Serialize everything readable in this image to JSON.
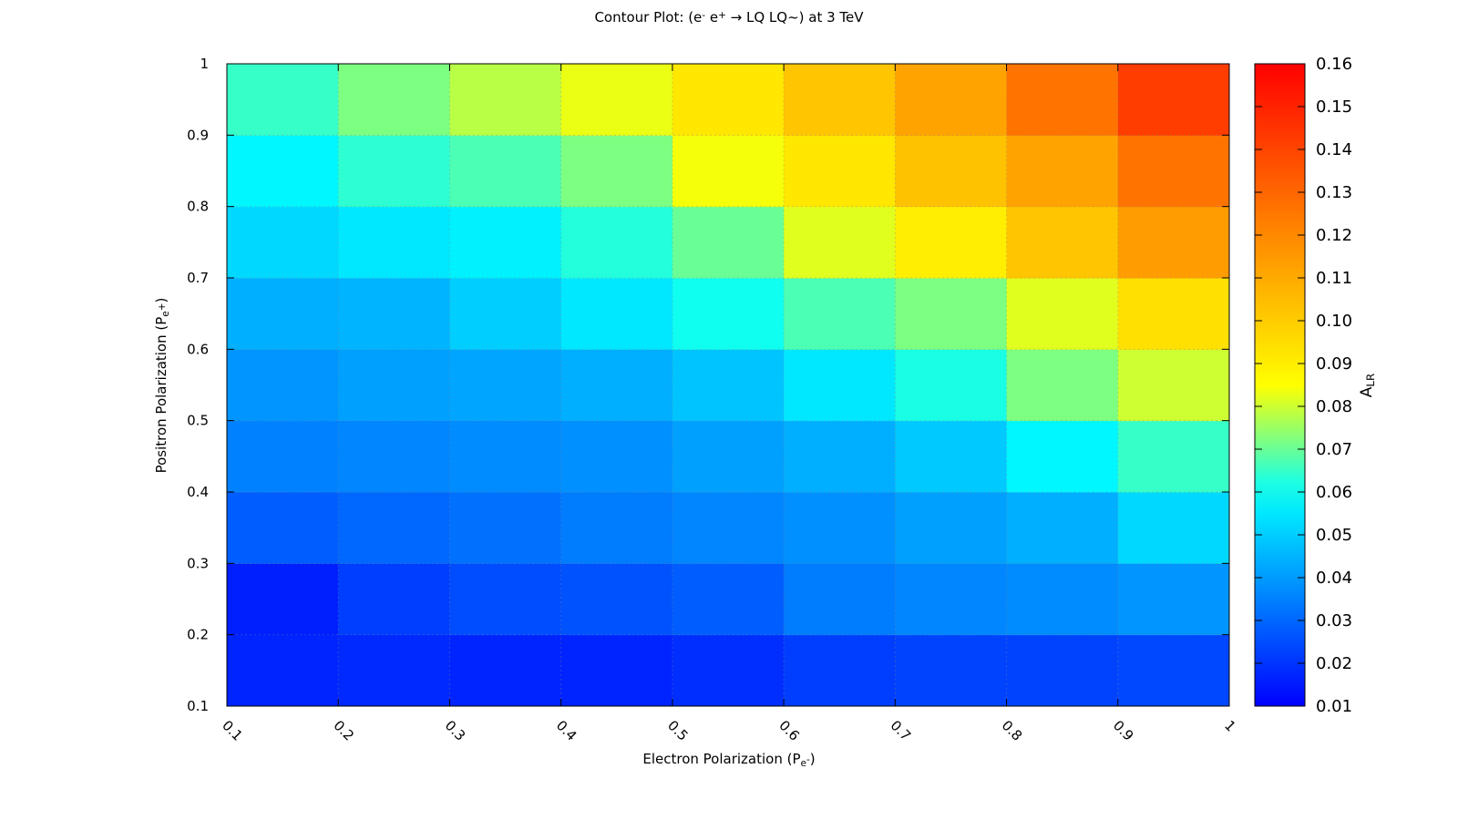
{
  "chart_data": {
    "type": "heatmap",
    "title": [
      {
        "text": "Contour Plot: (e"
      },
      {
        "text": "-",
        "shift": "sup"
      },
      {
        "text": " e"
      },
      {
        "text": "+",
        "shift": "sup"
      },
      {
        "text": " → LQ LQ~)  at 3 TeV"
      }
    ],
    "xlabel": [
      {
        "text": "Electron Polarization (P"
      },
      {
        "text": "e",
        "shift": "sub"
      },
      {
        "text": "-",
        "shift": "subsup"
      },
      {
        "text": ")"
      }
    ],
    "ylabel": [
      {
        "text": "Positron Polarization (P"
      },
      {
        "text": "e",
        "shift": "sub"
      },
      {
        "text": "+",
        "shift": "subsup"
      },
      {
        "text": ")"
      }
    ],
    "colorbar_label": [
      {
        "text": "A"
      },
      {
        "text": "LR",
        "shift": "sub"
      }
    ],
    "x": [
      0.1,
      0.2,
      0.3,
      0.4,
      0.5,
      0.6,
      0.7,
      0.8,
      0.9,
      1
    ],
    "y": [
      0.1,
      0.2,
      0.3,
      0.4,
      0.5,
      0.6,
      0.7,
      0.8,
      0.9,
      1
    ],
    "z": [
      [
        0.017,
        0.018,
        0.017,
        0.017,
        0.019,
        0.022,
        0.023,
        0.023,
        0.024
      ],
      [
        0.016,
        0.022,
        0.025,
        0.026,
        0.028,
        0.034,
        0.036,
        0.037,
        0.039
      ],
      [
        0.028,
        0.03,
        0.032,
        0.034,
        0.036,
        0.038,
        0.041,
        0.044,
        0.052
      ],
      [
        0.035,
        0.036,
        0.037,
        0.038,
        0.041,
        0.044,
        0.049,
        0.058,
        0.065
      ],
      [
        0.039,
        0.041,
        0.042,
        0.044,
        0.048,
        0.055,
        0.062,
        0.072,
        0.08
      ],
      [
        0.044,
        0.045,
        0.05,
        0.055,
        0.061,
        0.067,
        0.072,
        0.082,
        0.094
      ],
      [
        0.052,
        0.055,
        0.057,
        0.063,
        0.07,
        0.082,
        0.09,
        0.102,
        0.114
      ],
      [
        0.058,
        0.064,
        0.067,
        0.072,
        0.084,
        0.092,
        0.103,
        0.112,
        0.126
      ],
      [
        0.065,
        0.072,
        0.078,
        0.083,
        0.092,
        0.102,
        0.112,
        0.126,
        0.142
      ]
    ],
    "xlim": [
      0.1,
      1
    ],
    "ylim": [
      0.1,
      1
    ],
    "xticks": [
      0.1,
      0.2,
      0.3,
      0.4,
      0.5,
      0.6,
      0.7,
      0.8,
      0.9,
      1
    ],
    "yticks": [
      0.1,
      0.2,
      0.3,
      0.4,
      0.5,
      0.6,
      0.7,
      0.8,
      0.9,
      1
    ],
    "zlim": [
      0.01,
      0.16
    ],
    "zticks": [
      0.01,
      0.02,
      0.03,
      0.04,
      0.05,
      0.06,
      0.07,
      0.08,
      0.09,
      {
        "value": 0.1,
        "label": "0.10"
      },
      0.11,
      0.12,
      0.13,
      0.14,
      0.15,
      0.16
    ],
    "colormap": "jet",
    "grid": true
  }
}
